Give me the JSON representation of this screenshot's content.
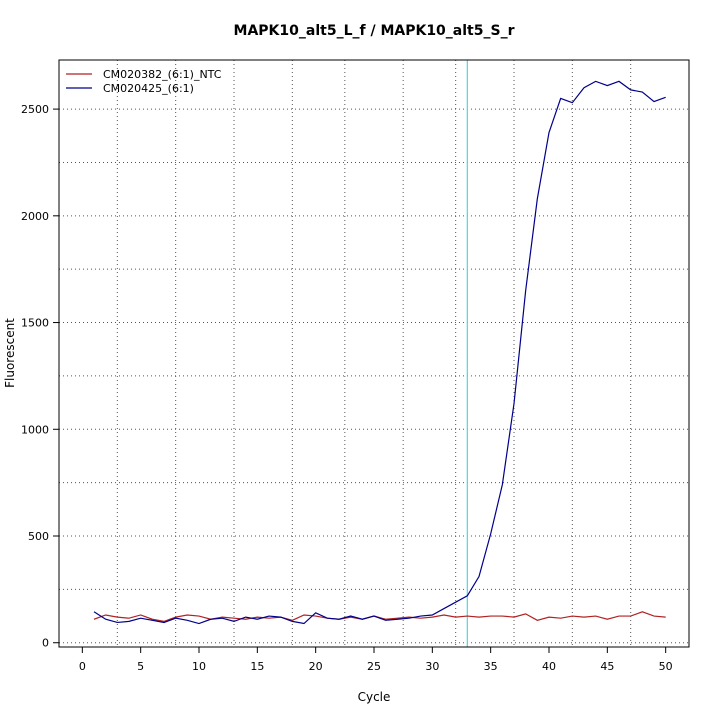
{
  "chart_data": {
    "type": "line",
    "title": "MAPK10_alt5_L_f / MAPK10_alt5_S_r",
    "xlabel": "Cycle",
    "ylabel": "Fluorescent",
    "xlim": [
      -2,
      52
    ],
    "ylim": [
      -20,
      2730
    ],
    "xticks": [
      0,
      5,
      10,
      15,
      20,
      25,
      30,
      35,
      40,
      45,
      50
    ],
    "yticks": [
      0,
      500,
      1000,
      1500,
      2000,
      2500
    ],
    "grid": true,
    "grid_x": [
      3,
      8,
      13,
      18,
      22.5,
      27.5,
      32,
      37,
      42,
      47
    ],
    "grid_y": [
      0,
      250,
      500,
      750,
      1000,
      1250,
      1500,
      1750,
      2000,
      2250,
      2500
    ],
    "threshold_cycle": 33,
    "threshold_color": "#40e0e0",
    "legend": "top-left",
    "x": [
      1,
      2,
      3,
      4,
      5,
      6,
      7,
      8,
      9,
      10,
      11,
      12,
      13,
      14,
      15,
      16,
      17,
      18,
      19,
      20,
      21,
      22,
      23,
      24,
      25,
      26,
      27,
      28,
      29,
      30,
      31,
      32,
      33,
      34,
      35,
      36,
      37,
      38,
      39,
      40,
      41,
      42,
      43,
      44,
      45,
      46,
      47,
      48,
      49,
      50
    ],
    "series": [
      {
        "name": "CM020382_(6:1)_NTC",
        "color": "#b22222",
        "values": [
          110,
          130,
          120,
          115,
          130,
          110,
          100,
          120,
          130,
          125,
          110,
          120,
          115,
          110,
          120,
          115,
          120,
          105,
          130,
          125,
          115,
          110,
          120,
          110,
          125,
          110,
          115,
          120,
          115,
          120,
          130,
          120,
          125,
          120,
          125,
          125,
          120,
          135,
          105,
          120,
          115,
          125,
          120,
          125,
          110,
          125,
          125,
          145,
          125,
          120
        ]
      },
      {
        "name": "CM020425_(6:1)",
        "color": "#00008b",
        "values": [
          145,
          110,
          95,
          100,
          115,
          105,
          95,
          115,
          105,
          90,
          110,
          115,
          100,
          120,
          110,
          125,
          120,
          100,
          90,
          140,
          115,
          110,
          125,
          110,
          125,
          105,
          110,
          115,
          125,
          130,
          160,
          190,
          220,
          310,
          510,
          740,
          1120,
          1650,
          2080,
          2390,
          2550,
          2530,
          2600,
          2630,
          2610,
          2630,
          2590,
          2580,
          2535,
          2555
        ]
      }
    ]
  }
}
